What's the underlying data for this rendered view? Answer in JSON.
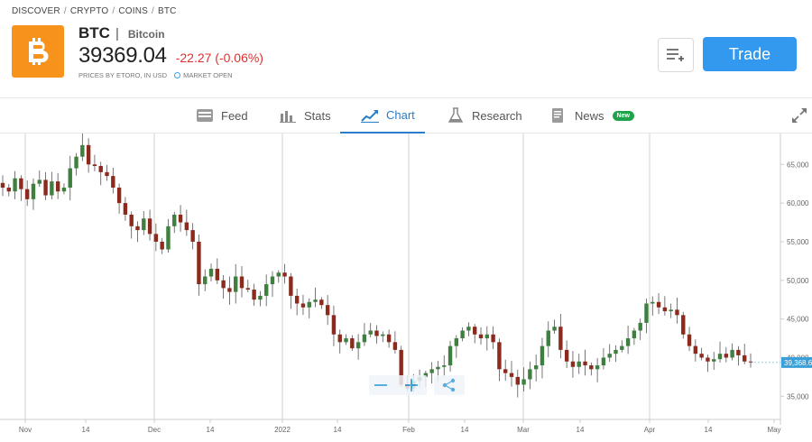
{
  "breadcrumb": [
    "DISCOVER",
    "CRYPTO",
    "COINS",
    "BTC"
  ],
  "asset": {
    "symbol": "BTC",
    "name": "Bitcoin",
    "price": "39369.04",
    "change": "-22.27 (-0.06%)",
    "prices_note": "PRICES BY ETORO, IN USD",
    "market_status": "MARKET OPEN",
    "change_color": "#e03030",
    "logo_color": "#f7931a"
  },
  "actions": {
    "trade_label": "Trade",
    "watchlist_icon": "add-to-list-icon"
  },
  "tabs": [
    {
      "label": "Feed",
      "icon": "feed-icon",
      "active": false
    },
    {
      "label": "Stats",
      "icon": "stats-icon",
      "active": false
    },
    {
      "label": "Chart",
      "icon": "chart-icon",
      "active": true
    },
    {
      "label": "Research",
      "icon": "research-icon",
      "active": false
    },
    {
      "label": "News",
      "icon": "news-icon",
      "active": false,
      "badge": "New"
    }
  ],
  "chart_data": {
    "type": "candlestick",
    "ylim": [
      32000,
      69000
    ],
    "y_ticks": [
      "65,000",
      "60,000",
      "55,000",
      "50,000",
      "45,000",
      "40,000",
      "35,000"
    ],
    "x_ticks": [
      "Nov",
      "14",
      "Dec",
      "14",
      "2022",
      "14",
      "Feb",
      "14",
      "Mar",
      "14",
      "Apr",
      "14",
      "May"
    ],
    "current_price_label": "39,368.6",
    "up_color": "#3f7f3f",
    "down_color": "#8b2a1d",
    "closes": [
      62000,
      61500,
      63200,
      61800,
      60500,
      62500,
      63000,
      61000,
      62800,
      61500,
      62000,
      64500,
      66000,
      67500,
      65000,
      64800,
      64000,
      63500,
      62000,
      60000,
      58500,
      57000,
      56500,
      58000,
      56000,
      55000,
      54000,
      57000,
      58500,
      57500,
      56500,
      55000,
      49500,
      50500,
      51500,
      50000,
      49000,
      48500,
      50500,
      49000,
      48800,
      47500,
      48000,
      49500,
      50500,
      51000,
      50500,
      48000,
      47000,
      46500,
      47200,
      47500,
      46800,
      45500,
      43000,
      42000,
      42500,
      41200,
      42000,
      43000,
      43500,
      42800,
      43000,
      42000,
      41000,
      36500,
      36000,
      37000,
      37500,
      38000,
      38500,
      38800,
      39000,
      41500,
      42500,
      43500,
      44000,
      43000,
      42500,
      43000,
      42000,
      38500,
      38000,
      37500,
      36500,
      37200,
      38500,
      39000,
      41500,
      43500,
      44000,
      41000,
      39500,
      38800,
      39500,
      39000,
      38500,
      39000,
      40000,
      40500,
      41000,
      41500,
      42500,
      43500,
      44500,
      47000,
      47200,
      46500,
      46000,
      46200,
      45500,
      43000,
      41500,
      40500,
      40000,
      39500,
      39800,
      40500,
      40000,
      41000,
      40300,
      39500,
      39400
    ]
  }
}
